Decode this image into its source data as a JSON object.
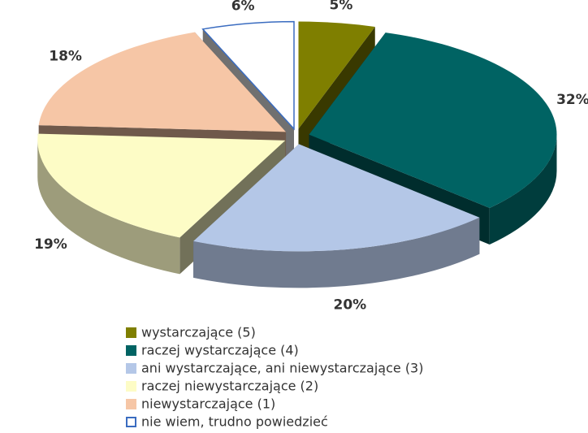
{
  "chart_data": {
    "type": "pie",
    "categories": [
      "wystarczające (5)",
      "raczej wystarczające (4)",
      "ani wystarczające, ani niewystarczające (3)",
      "raczej niewystarczające (2)",
      "niewystarczające (1)",
      "nie wiem, trudno powiedzieć"
    ],
    "values": [
      5,
      32,
      20,
      19,
      18,
      6
    ],
    "value_labels": [
      "5%",
      "32%",
      "20%",
      "19%",
      "18%",
      "6%"
    ],
    "colors": [
      "#7f7f00",
      "#006363",
      "#b4c7e7",
      "#fdfcc6",
      "#f6c6a6",
      "#ffffff"
    ],
    "legend": "bottom"
  }
}
